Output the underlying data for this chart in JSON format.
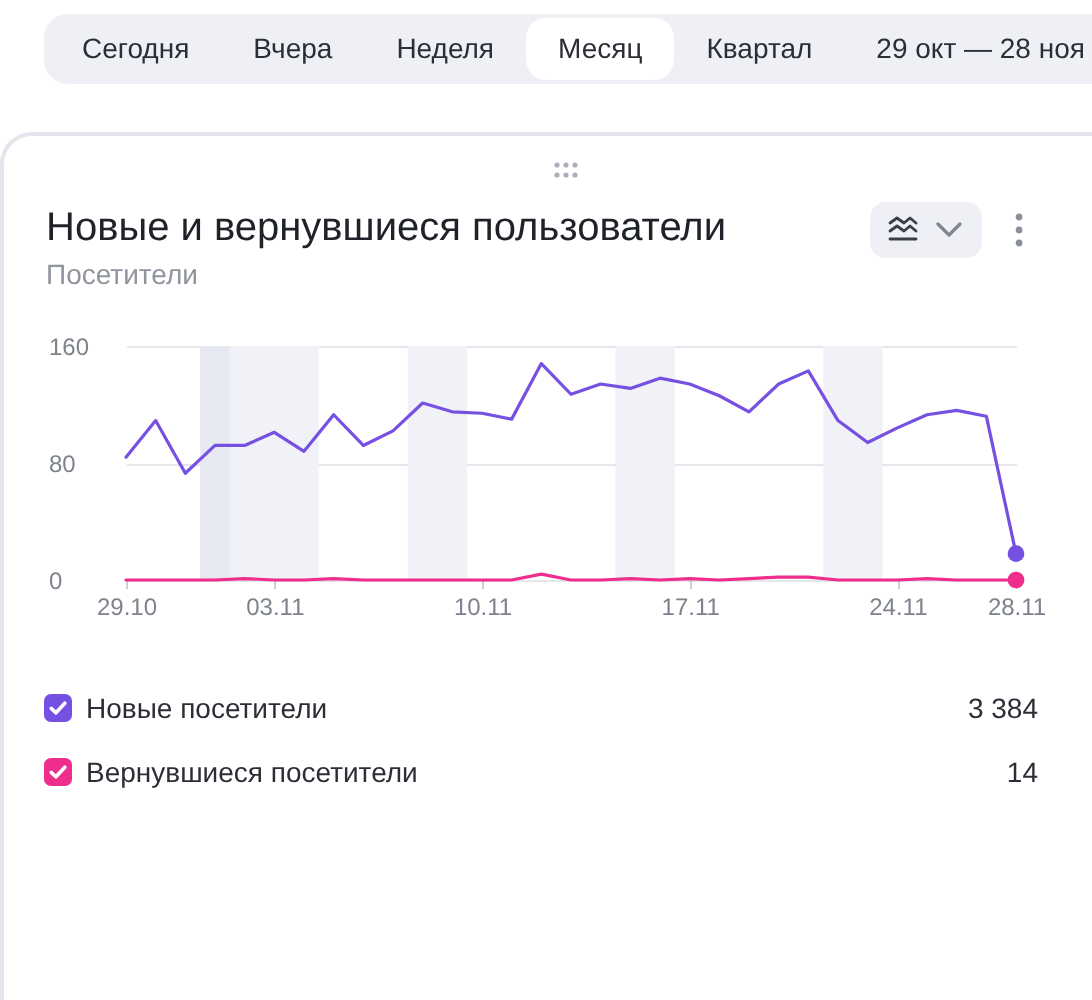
{
  "chart_data": {
    "type": "line",
    "title": "Новые и вернувшиеся пользователи",
    "subtitle": "Посетители",
    "x": [
      "--10-29",
      "--10-30",
      "--10-31",
      "--11-01",
      "--11-02",
      "--11-03",
      "--11-04",
      "--11-05",
      "--11-06",
      "--11-07",
      "--11-08",
      "--11-09",
      "--11-10",
      "--11-11",
      "--11-12",
      "--11-13",
      "--11-14",
      "--11-15",
      "--11-16",
      "--11-17",
      "--11-18",
      "--11-19",
      "--11-20",
      "--11-21",
      "--11-22",
      "--11-23",
      "--11-24",
      "--11-25",
      "--11-26",
      "--11-27",
      "--11-28"
    ],
    "series": [
      {
        "name": "Новые посетители",
        "color": "#7550e3",
        "values": [
          84,
          109,
          73,
          92,
          92,
          101,
          88,
          113,
          92,
          102,
          121,
          115,
          114,
          110,
          148,
          127,
          134,
          131,
          138,
          134,
          126,
          115,
          134,
          143,
          109,
          94,
          104,
          113,
          116,
          112,
          18
        ]
      },
      {
        "name": "Вернувшиеся посетители",
        "color": "#ee2d8c",
        "values": [
          0,
          0,
          0,
          0,
          1,
          0,
          0,
          1,
          0,
          0,
          0,
          0,
          0,
          0,
          4,
          0,
          0,
          1,
          0,
          1,
          0,
          1,
          2,
          2,
          0,
          0,
          0,
          1,
          0,
          0,
          0
        ]
      }
    ],
    "xlim": [
      "--10-29",
      "--11-28"
    ],
    "xticks": [
      {
        "value": "--10-29",
        "label": "29.10"
      },
      {
        "value": "--11-03",
        "label": "03.11"
      },
      {
        "value": "--11-10",
        "label": "10.11"
      },
      {
        "value": "--11-17",
        "label": "17.11"
      },
      {
        "value": "--11-24",
        "label": "24.11"
      },
      {
        "value": "--11-28",
        "label": "28.11"
      }
    ],
    "ylim": [
      0,
      160
    ],
    "yticks": [
      0,
      80,
      160
    ],
    "grid": "y",
    "legend": "bottom",
    "bands": [
      {
        "axis": "x",
        "from": "--10-31T12:00",
        "to": "--11-01T12:00",
        "color": "#e6e9f2"
      },
      {
        "axis": "x",
        "from": "--11-01T12:00",
        "to": "--11-04T12:00",
        "color": "#f1f2f7"
      },
      {
        "axis": "x",
        "from": "--11-07T12:00",
        "to": "--11-09T12:00",
        "color": "#f1f2f7"
      },
      {
        "axis": "x",
        "from": "--11-14T12:00",
        "to": "--11-16T12:00",
        "color": "#f1f2f7"
      },
      {
        "axis": "x",
        "from": "--11-21T12:00",
        "to": "--11-23T12:00",
        "color": "#f1f2f7"
      }
    ],
    "annotations": [
      "Сегодня",
      "Вчера",
      "Неделя",
      "Месяц",
      "Квартал",
      "29 окт — 28 ноя",
      "3 384",
      "14"
    ]
  }
}
